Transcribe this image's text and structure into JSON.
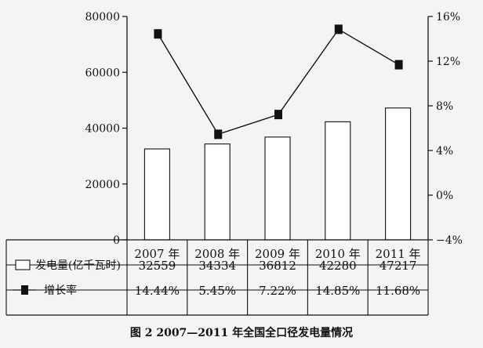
{
  "chart_data": {
    "type": "bar+line",
    "categories": [
      "2007 年",
      "2008 年",
      "2009 年",
      "2010 年",
      "2011 年"
    ],
    "series": [
      {
        "name": "发电量(亿千瓦时)",
        "kind": "bar",
        "axis": "left",
        "values": [
          32559,
          34334,
          36812,
          42280,
          47217
        ],
        "labels": [
          "32559",
          "34334",
          "36812",
          "42280",
          "47217"
        ]
      },
      {
        "name": "增长率",
        "kind": "line",
        "axis": "right",
        "values": [
          14.44,
          5.45,
          7.22,
          14.85,
          11.68
        ],
        "labels": [
          "14.44%",
          "5.45%",
          "7.22%",
          "14.85%",
          "11.68%"
        ]
      }
    ],
    "left_axis": {
      "ylim": [
        0,
        80000
      ],
      "ticks": [
        0,
        20000,
        40000,
        60000,
        80000
      ],
      "tick_labels": [
        "0",
        "20000",
        "40000",
        "60000",
        "80000"
      ]
    },
    "right_axis": {
      "ylim": [
        -4,
        16
      ],
      "ticks": [
        -4,
        0,
        4,
        8,
        12,
        16
      ],
      "tick_labels": [
        "−4%",
        "0%",
        "4%",
        "8%",
        "12%",
        "16%"
      ]
    },
    "grid": false,
    "legend": "data-table-left",
    "caption": "图 2  2007—2011 年全国全口径发电量情况"
  },
  "colors": {
    "background": "#f4f4f2",
    "bar_fill": "#ffffff",
    "ink": "#111111"
  }
}
